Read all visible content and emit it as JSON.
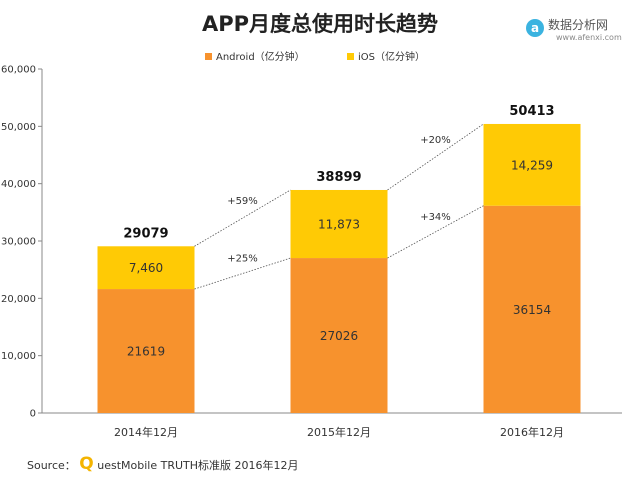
{
  "chart_data": {
    "type": "bar",
    "stacked": true,
    "title": "APP月度总使用时长趋势",
    "categories": [
      "2014年12月",
      "2015年12月",
      "2016年12月"
    ],
    "series": [
      {
        "name": "Android（亿分钟）",
        "values": [
          21619,
          27026,
          36154
        ],
        "labels": [
          "21619",
          "27026",
          "36154"
        ],
        "color": "#F7922D"
      },
      {
        "name": "iOS（亿分钟）",
        "values": [
          7460,
          11873,
          14259
        ],
        "labels": [
          "7,460",
          "11,873",
          "14,259"
        ],
        "color": "#FFCA05"
      }
    ],
    "totals": [
      29079,
      38899,
      50413
    ],
    "totals_labels": [
      "29079",
      "38899",
      "50413"
    ],
    "growth": {
      "top": [
        "+59%",
        "+20%"
      ],
      "bottom": [
        "+25%",
        "+34%"
      ]
    },
    "ylim": [
      0,
      60000
    ],
    "yticks": [
      0,
      10000,
      20000,
      30000,
      40000,
      50000,
      60000
    ],
    "ytick_labels": [
      "0",
      "10,000",
      "20,000",
      "30,000",
      "40,000",
      "50,000",
      "60,000"
    ],
    "grid": false,
    "legend_position": "top-center"
  },
  "source": {
    "prefix": "Source：",
    "brand_initial": "Q",
    "brand_rest": "uestMobile TRUTH标准版 2016年12月",
    "brand_color": "#F4B400"
  },
  "logo": {
    "icon_letter": "a",
    "name": "数据分析网",
    "url": "www.afenxi.com",
    "icon_color": "#3BB3E0"
  }
}
